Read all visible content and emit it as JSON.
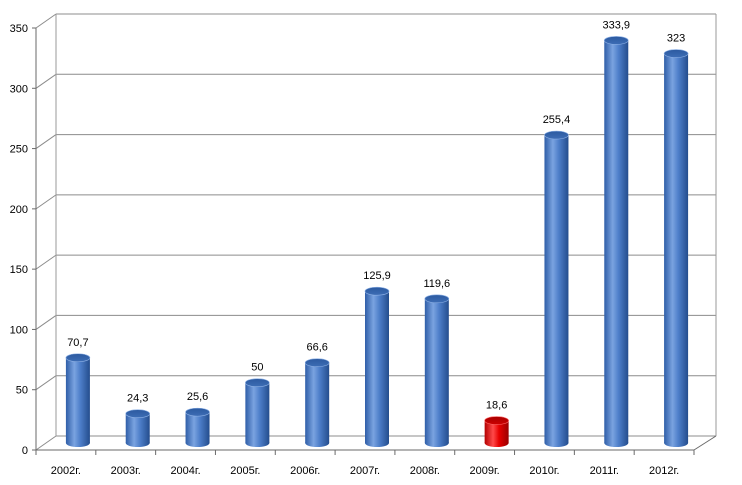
{
  "chart_data": {
    "type": "bar",
    "categories": [
      "2002г.",
      "2003г.",
      "2004г.",
      "2005г.",
      "2006г.",
      "2007г.",
      "2008г.",
      "2009г.",
      "2010г.",
      "2011г.",
      "2012г."
    ],
    "values": [
      70.7,
      24.3,
      25.6,
      50,
      66.6,
      125.9,
      119.6,
      18.6,
      255.4,
      333.9,
      323
    ],
    "data_labels": [
      "70,7",
      "24,3",
      "25,6",
      "50",
      "66,6",
      "125,9",
      "119,6",
      "18,6",
      "255,4",
      "333,9",
      "323"
    ],
    "yticks": [
      0,
      50,
      100,
      150,
      200,
      250,
      300,
      350
    ],
    "ylim": [
      0,
      350
    ],
    "grid": true,
    "legend": "none",
    "bar_color": "#4a7cc7",
    "highlight_category": "2009г.",
    "highlight_color": "#e60000",
    "title": "",
    "xlabel": "",
    "ylabel": ""
  }
}
